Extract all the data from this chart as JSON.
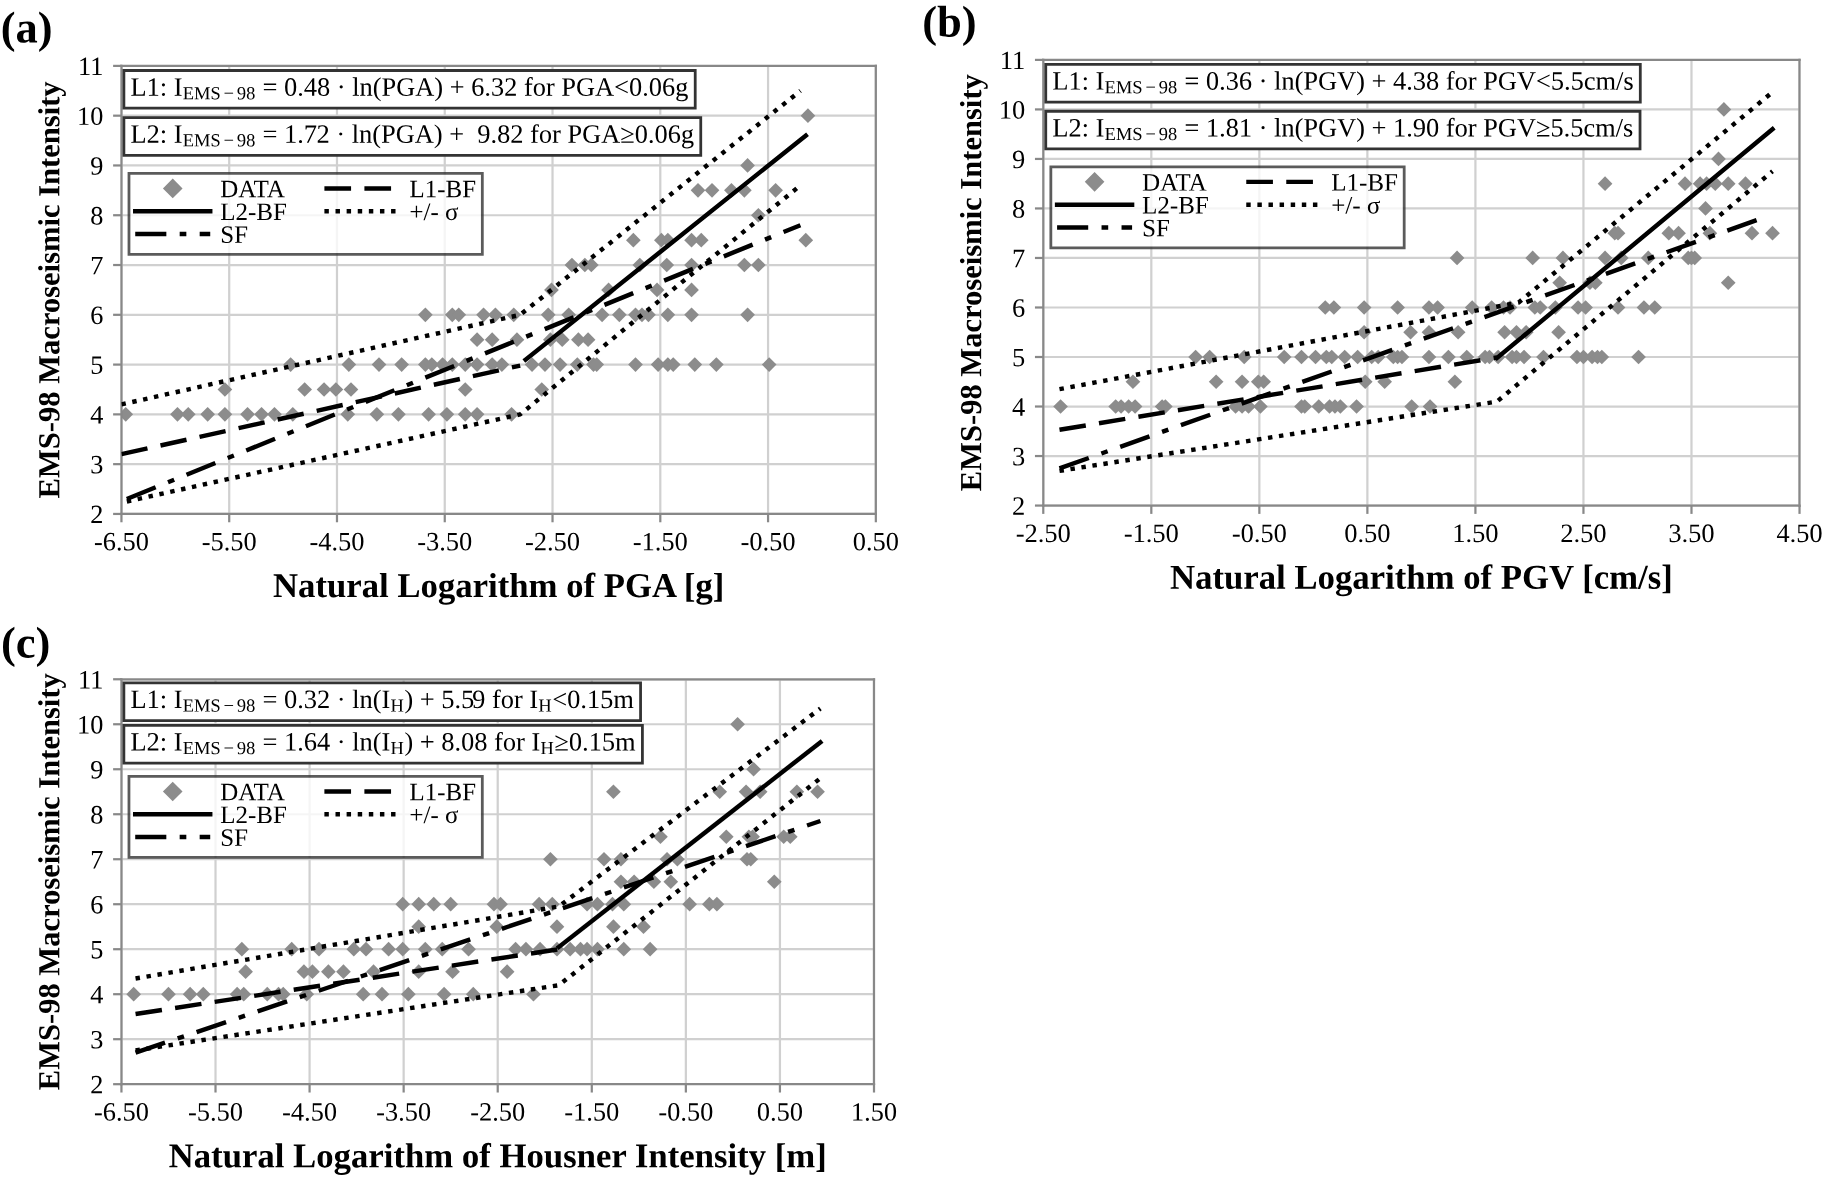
{
  "chart_data": [
    {
      "type": "scatter",
      "title": "(a)",
      "xlabel": "Natural Logarithm of PGA [g]",
      "ylabel": "EMS-98 Macroseismic Intensity",
      "annotations": [
        "L1: I$_{EMS−98}$ = 0.48 · ln(PGA) + 6.32 for PGA<0.06g",
        "L2: I$_{EMS−98}$ = 1.72 · ln(PGA) +  9.82 for PGA≥0.06g"
      ],
      "xlim": [
        -6.5,
        0.5
      ],
      "ylim": [
        2,
        11
      ],
      "xticks": [
        {
          "value": -6.5,
          "label": "-6.50"
        },
        {
          "value": -5.5,
          "label": "-5.50"
        },
        {
          "value": -4.5,
          "label": "-4.50"
        },
        {
          "value": -3.5,
          "label": "-3.50"
        },
        {
          "value": -2.5,
          "label": "-2.50"
        },
        {
          "value": -1.5,
          "label": "-1.50"
        },
        {
          "value": -0.5,
          "label": "-0.50"
        },
        {
          "value": 0.5,
          "label": "0.50"
        }
      ],
      "yticks": [
        2,
        3,
        4,
        5,
        6,
        7,
        8,
        9,
        10,
        11
      ],
      "grid": true,
      "legend": "top left",
      "series": [
        {
          "name": "DATA",
          "marker": "diamond",
          "color": "#8c8c8c",
          "x": [
            -6.46,
            -5.98,
            -5.88,
            -5.7,
            -5.54,
            -5.33,
            -5.2,
            -5.08,
            -4.91,
            -4.4,
            -4.13,
            -3.93,
            -3.65,
            -3.48,
            -3.31,
            -3.2,
            -2.88,
            -5.54,
            -4.8,
            -4.62,
            -4.51,
            -4.37,
            -3.31,
            -2.6,
            -4.93,
            -4.39,
            -4.11,
            -3.9,
            -3.68,
            -3.62,
            -3.52,
            -3.43,
            -3.31,
            -3.2,
            -3.06,
            -2.97,
            -2.69,
            -2.57,
            -2.43,
            -2.27,
            -2.12,
            -2.09,
            -1.73,
            -1.52,
            -1.43,
            -1.38,
            -1.18,
            -0.98,
            -0.49,
            -3.2,
            -3.06,
            -2.83,
            -2.52,
            -2.41,
            -2.26,
            -2.17,
            -3.68,
            -3.43,
            -3.37,
            -3.14,
            -3.03,
            -2.86,
            -2.54,
            -2.35,
            -2.04,
            -1.88,
            -1.73,
            -1.67,
            -1.61,
            -1.43,
            -1.21,
            -0.69,
            -2.51,
            -1.98,
            -1.53,
            -1.21,
            -2.32,
            -2.2,
            -2.14,
            -1.69,
            -1.44,
            -1.21,
            -0.72,
            -0.59,
            -1.75,
            -1.49,
            -1.43,
            -1.21,
            -1.12,
            -0.15,
            -0.59,
            -1.15,
            -1.02,
            -0.84,
            -0.72,
            -0.43,
            -0.69,
            -0.13
          ],
          "values": [
            4,
            4,
            4,
            4,
            4,
            4,
            4,
            4,
            4,
            4,
            4,
            4,
            4,
            4,
            4,
            4,
            4,
            4.5,
            4.5,
            4.5,
            4.5,
            4.5,
            4.5,
            4.5,
            5,
            5,
            5,
            5,
            5,
            5,
            5,
            5,
            5,
            5,
            5,
            5,
            5,
            5,
            5,
            5,
            5,
            5,
            5,
            5,
            5,
            5,
            5,
            5,
            5,
            5.5,
            5.5,
            5.5,
            5.5,
            5.5,
            5.5,
            5.5,
            6,
            6,
            6,
            6,
            6,
            6,
            6,
            6,
            6,
            6,
            6,
            6,
            6,
            6,
            6,
            6,
            6.5,
            6.5,
            6.5,
            6.5,
            7,
            7,
            7,
            7,
            7,
            7,
            7,
            7,
            7.5,
            7.5,
            7.5,
            7.5,
            7.5,
            7.5,
            8,
            8.5,
            8.5,
            8.5,
            8.5,
            8.5,
            9,
            10
          ]
        },
        {
          "name": "L1-BF",
          "type": "line",
          "line_style": "dashed",
          "marker": "none",
          "color": "#000000",
          "x": [
            -6.5,
            -2.8
          ],
          "values": [
            3.2,
            4.98
          ]
        },
        {
          "name": "L2-BF",
          "type": "line",
          "line_style": "solid",
          "marker": "none",
          "color": "#000000",
          "x": [
            -2.75,
            -0.15
          ],
          "values": [
            5.1,
            9.6
          ]
        },
        {
          "name": "+/- σ",
          "type": "line",
          "line_style": "dotted",
          "marker": "none",
          "color": "#000000",
          "x": [
            -6.5,
            -2.8,
            -0.2
          ],
          "values": [
            4.2,
            6.0,
            10.5
          ]
        },
        {
          "name": "SF",
          "type": "line",
          "line_style": "dashdot",
          "marker": "none",
          "color": "#000000",
          "x": [
            -6.45,
            -0.2
          ],
          "values": [
            2.3,
            7.8
          ]
        },
        {
          "type": "line",
          "line_style": "dotted",
          "marker": "none",
          "color": "#000000",
          "x": [
            -6.45,
            -2.8,
            -0.2
          ],
          "values": [
            2.25,
            4.0,
            8.6
          ]
        }
      ]
    },
    {
      "type": "scatter",
      "title": "(b)",
      "xlabel": "Natural Logarithm of PGV [cm/s]",
      "ylabel": "EMS-98 Macroseismic Intensity",
      "annotations": [
        "L1: I$_{EMS−98}$ = 0.36 · ln(PGV) + 4.38 for PGV<5.5cm/s",
        "L2: I$_{EMS−98}$ = 1.81 · ln(PGV) + 1.90 for PGV≥5.5cm/s"
      ],
      "xlim": [
        -2.5,
        4.5
      ],
      "ylim": [
        2,
        11
      ],
      "xticks": [
        {
          "value": -2.5,
          "label": "-2.50"
        },
        {
          "value": -1.5,
          "label": "-1.50"
        },
        {
          "value": -0.5,
          "label": "-0.50"
        },
        {
          "value": 0.5,
          "label": "0.50"
        },
        {
          "value": 1.5,
          "label": "1.50"
        },
        {
          "value": 2.5,
          "label": "2.50"
        },
        {
          "value": 3.5,
          "label": "3.50"
        },
        {
          "value": 4.5,
          "label": "4.50"
        }
      ],
      "yticks": [
        2,
        3,
        4,
        5,
        6,
        7,
        8,
        9,
        10,
        11
      ],
      "grid": true,
      "legend": "top left",
      "series": [
        {
          "name": "DATA",
          "marker": "diamond",
          "color": "#8c8c8c",
          "x": [
            -2.34,
            -1.83,
            -1.78,
            -1.71,
            -1.65,
            -1.4,
            -1.37,
            -0.72,
            -0.66,
            -0.6,
            -0.49,
            -0.11,
            -0.08,
            0.05,
            0.15,
            0.2,
            0.25,
            0.4,
            0.91,
            1.08,
            -1.67,
            -0.9,
            -0.66,
            -0.51,
            -0.46,
            0.48,
            0.66,
            1.31,
            -1.09,
            -0.96,
            -0.64,
            -0.27,
            -0.11,
            0.02,
            0.12,
            0.17,
            0.29,
            0.41,
            0.54,
            0.6,
            0.74,
            0.78,
            0.82,
            1.07,
            1.25,
            1.42,
            1.59,
            1.63,
            1.71,
            1.84,
            1.88,
            1.95,
            2.13,
            2.44,
            2.5,
            2.58,
            2.63,
            2.67,
            3.01,
            0.47,
            0.9,
            1.07,
            1.34,
            1.77,
            1.88,
            1.97,
            2.27,
            0.11,
            0.19,
            0.47,
            0.78,
            1.07,
            1.15,
            1.47,
            1.65,
            1.76,
            1.82,
            2.05,
            2.1,
            2.24,
            2.45,
            2.52,
            2.82,
            3.06,
            3.16,
            2.28,
            2.56,
            2.61,
            3.84,
            1.33,
            2.03,
            2.31,
            2.7,
            2.85,
            3.1,
            3.47,
            3.5,
            3.53,
            2.79,
            2.82,
            3.29,
            3.38,
            3.67,
            4.06,
            4.25,
            3.63,
            2.7,
            3.44,
            3.58,
            3.64,
            3.72,
            3.84,
            4.0,
            3.75,
            3.8
          ],
          "values": [
            4,
            4,
            4,
            4,
            4,
            4,
            4,
            4,
            4,
            4,
            4,
            4,
            4,
            4,
            4,
            4,
            4,
            4,
            4,
            4,
            4.5,
            4.5,
            4.5,
            4.5,
            4.5,
            4.5,
            4.5,
            4.5,
            5,
            5,
            5,
            5,
            5,
            5,
            5,
            5,
            5,
            5,
            5,
            5,
            5,
            5,
            5,
            5,
            5,
            5,
            5,
            5,
            5,
            5,
            5,
            5,
            5,
            5,
            5,
            5,
            5,
            5,
            5,
            5.5,
            5.5,
            5.5,
            5.5,
            5.5,
            5.5,
            5.5,
            5.5,
            6,
            6,
            6,
            6,
            6,
            6,
            6,
            6,
            6,
            6,
            6,
            6,
            6,
            6,
            6,
            6,
            6,
            6,
            6.5,
            6.5,
            6.5,
            6.5,
            7,
            7,
            7,
            7,
            7,
            7,
            7,
            7,
            7,
            7.5,
            7.5,
            7.5,
            7.5,
            7.5,
            7.5,
            7.5,
            8,
            8.5,
            8.5,
            8.5,
            8.5,
            8.5,
            8.5,
            8.5,
            9,
            10
          ]
        },
        {
          "name": "L1-BF",
          "type": "line",
          "line_style": "dashed",
          "marker": "none",
          "color": "#000000",
          "x": [
            -2.35,
            1.7
          ],
          "values": [
            3.53,
            4.99
          ]
        },
        {
          "name": "L2-BF",
          "type": "line",
          "line_style": "solid",
          "marker": "none",
          "color": "#000000",
          "x": [
            1.7,
            4.25
          ],
          "values": [
            4.98,
            9.6
          ]
        },
        {
          "name": "+/- σ",
          "type": "line",
          "line_style": "dotted",
          "marker": "none",
          "color": "#000000",
          "x": [
            -2.35,
            1.9,
            4.25
          ],
          "values": [
            4.35,
            6.1,
            10.35
          ]
        },
        {
          "name": "SF",
          "type": "line",
          "line_style": "dashdot",
          "marker": "none",
          "color": "#000000",
          "x": [
            -2.35,
            4.15
          ],
          "values": [
            2.75,
            7.8
          ]
        },
        {
          "type": "line",
          "line_style": "dotted",
          "marker": "none",
          "color": "#000000",
          "x": [
            -2.35,
            1.7,
            4.25
          ],
          "values": [
            2.7,
            4.1,
            8.75
          ]
        }
      ]
    },
    {
      "type": "scatter",
      "title": "(c)",
      "xlabel": "Natural Logarithm of Housner Intensity [m]",
      "ylabel": "EMS-98 Macroseismic Intensity",
      "annotations": [
        "L1: I$_{EMS−98}$ = 0.32 · ln(I$_{H}$) + 5.59 for I$_{H}$<0.15m",
        "L2: I$_{EMS−98}$ = 1.64 · ln(I$_{H}$) + 8.08 for I$_{H}$≥0.15m"
      ],
      "xlim": [
        -6.5,
        1.5
      ],
      "ylim": [
        2,
        11
      ],
      "xticks": [
        {
          "value": -6.5,
          "label": "-6.50"
        },
        {
          "value": -5.5,
          "label": "-5.50"
        },
        {
          "value": -4.5,
          "label": "-4.50"
        },
        {
          "value": -3.5,
          "label": "-3.50"
        },
        {
          "value": -2.5,
          "label": "-2.50"
        },
        {
          "value": -1.5,
          "label": "-1.50"
        },
        {
          "value": -0.5,
          "label": "-0.50"
        },
        {
          "value": 0.5,
          "label": "0.50"
        },
        {
          "value": 1.5,
          "label": "1.50"
        }
      ],
      "yticks": [
        2,
        3,
        4,
        5,
        6,
        7,
        8,
        9,
        10,
        11
      ],
      "grid": true,
      "legend": "top left",
      "series": [
        {
          "name": "DATA",
          "marker": "diamond",
          "color": "#8c8c8c",
          "x": [
            -6.37,
            -6.0,
            -5.77,
            -5.63,
            -5.27,
            -5.2,
            -4.95,
            -4.83,
            -4.78,
            -4.53,
            -3.93,
            -3.73,
            -3.45,
            -3.07,
            -2.76,
            -2.12,
            -5.18,
            -4.56,
            -4.47,
            -4.3,
            -4.14,
            -3.82,
            -3.34,
            -2.98,
            -2.4,
            -5.22,
            -4.69,
            -4.4,
            -4.03,
            -3.9,
            -3.66,
            -3.51,
            -3.27,
            -3.09,
            -2.81,
            -2.31,
            -2.2,
            -2.05,
            -1.87,
            -1.73,
            -1.62,
            -1.55,
            -1.44,
            -1.16,
            -0.88,
            -3.34,
            -2.51,
            -1.87,
            -1.27,
            -0.95,
            -3.51,
            -3.34,
            -3.18,
            -3.0,
            -2.54,
            -2.47,
            -2.06,
            -1.92,
            -1.55,
            -1.44,
            -1.28,
            -1.16,
            -0.46,
            -0.25,
            -0.17,
            -1.19,
            -1.05,
            -0.84,
            -0.66,
            0.44,
            -1.94,
            -1.37,
            -1.19,
            -0.7,
            -0.59,
            0.15,
            0.19,
            -0.77,
            -0.07,
            0.17,
            0.21,
            0.54,
            0.61,
            -1.27,
            -0.14,
            0.14,
            0.29,
            0.68,
            0.9,
            0.22,
            0.05
          ],
          "values": [
            4,
            4,
            4,
            4,
            4,
            4,
            4,
            4,
            4,
            4,
            4,
            4,
            4,
            4,
            4,
            4,
            4.5,
            4.5,
            4.5,
            4.5,
            4.5,
            4.5,
            4.5,
            4.5,
            4.5,
            5,
            5,
            5,
            5,
            5,
            5,
            5,
            5,
            5,
            5,
            5,
            5,
            5,
            5,
            5,
            5,
            5,
            5,
            5,
            5,
            5.5,
            5.5,
            5.5,
            5.5,
            5.5,
            6,
            6,
            6,
            6,
            6,
            6,
            6,
            6,
            6,
            6,
            6,
            6,
            6,
            6,
            6,
            6.5,
            6.5,
            6.5,
            6.5,
            6.5,
            7,
            7,
            7,
            7,
            7,
            7,
            7,
            7.5,
            7.5,
            7.5,
            7.5,
            7.5,
            7.5,
            8.5,
            8.5,
            8.5,
            8.5,
            8.5,
            8.5,
            9,
            10
          ]
        },
        {
          "name": "L1-BF",
          "type": "line",
          "line_style": "dashed",
          "marker": "none",
          "color": "#000000",
          "x": [
            -6.35,
            -1.85
          ],
          "values": [
            3.56,
            5.0
          ]
        },
        {
          "name": "L2-BF",
          "type": "line",
          "line_style": "solid",
          "marker": "none",
          "color": "#000000",
          "x": [
            -1.85,
            0.93
          ],
          "values": [
            5.05,
            9.6
          ]
        },
        {
          "name": "+/- σ",
          "type": "line",
          "line_style": "dotted",
          "marker": "none",
          "color": "#000000",
          "x": [
            -6.35,
            -1.85,
            0.93
          ],
          "values": [
            4.35,
            5.95,
            10.35
          ]
        },
        {
          "name": "SF",
          "type": "line",
          "line_style": "dashdot",
          "marker": "none",
          "color": "#000000",
          "x": [
            -6.35,
            0.93
          ],
          "values": [
            2.7,
            7.85
          ]
        },
        {
          "type": "line",
          "line_style": "dotted",
          "marker": "none",
          "color": "#000000",
          "x": [
            -6.35,
            -1.85,
            0.93
          ],
          "values": [
            2.75,
            4.2,
            8.8
          ]
        }
      ]
    }
  ]
}
